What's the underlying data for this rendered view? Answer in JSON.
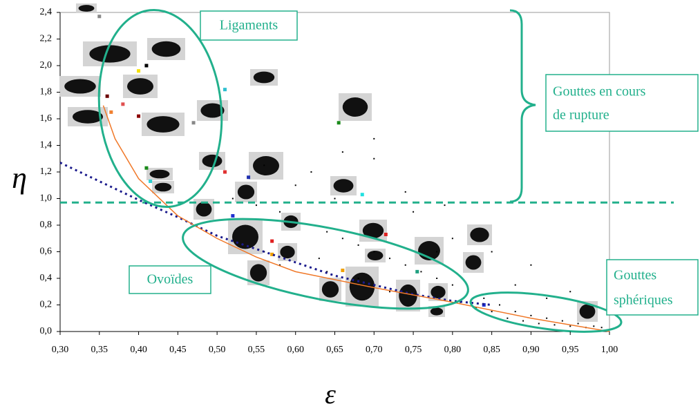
{
  "chart_data": {
    "type": "scatter",
    "x_label": "ε",
    "y_label": "η",
    "xlim": [
      0.3,
      1.0
    ],
    "ylim": [
      0,
      2.4
    ],
    "xticks": [
      {
        "value": 0.3,
        "label": "0,30"
      },
      {
        "value": 0.35,
        "label": "0,35"
      },
      {
        "value": 0.4,
        "label": "0,40"
      },
      {
        "value": 0.45,
        "label": "0,45"
      },
      {
        "value": 0.5,
        "label": "0,50"
      },
      {
        "value": 0.55,
        "label": "0,55"
      },
      {
        "value": 0.6,
        "label": "0,60"
      },
      {
        "value": 0.65,
        "label": "0,65"
      },
      {
        "value": 0.7,
        "label": "0,70"
      },
      {
        "value": 0.75,
        "label": "0,75"
      },
      {
        "value": 0.8,
        "label": "0,80"
      },
      {
        "value": 0.85,
        "label": "0,85"
      },
      {
        "value": 0.9,
        "label": "0,90"
      },
      {
        "value": 0.95,
        "label": "0,95"
      },
      {
        "value": 1.0,
        "label": "1,00"
      }
    ],
    "yticks": [
      {
        "value": 0.0,
        "label": "0,0"
      },
      {
        "value": 0.2,
        "label": "0,2"
      },
      {
        "value": 0.4,
        "label": "0,4"
      },
      {
        "value": 0.6,
        "label": "0,6"
      },
      {
        "value": 0.8,
        "label": "0,8"
      },
      {
        "value": 1.0,
        "label": "1,0"
      },
      {
        "value": 1.2,
        "label": "1,2"
      },
      {
        "value": 1.4,
        "label": "1,4"
      },
      {
        "value": 1.6,
        "label": "1,6"
      },
      {
        "value": 1.8,
        "label": "1,8"
      },
      {
        "value": 2.0,
        "label": "2,0"
      },
      {
        "value": 2.2,
        "label": "2,2"
      },
      {
        "value": 2.4,
        "label": "2,4"
      }
    ],
    "threshold": {
      "value": 0.97,
      "color": "#22b08c"
    },
    "annotations": [
      [
        "Ligaments"
      ],
      [
        "Gouttes en cours",
        "de rupture"
      ],
      [
        "Ovoïdes"
      ],
      [
        "Gouttes",
        "sphériques"
      ]
    ],
    "series": [
      {
        "mode": "markers",
        "color": "#000000",
        "x": [
          0.52,
          0.55,
          0.58,
          0.6,
          0.62,
          0.64,
          0.66,
          0.68,
          0.7,
          0.72,
          0.74,
          0.76,
          0.78,
          0.8,
          0.82,
          0.84,
          0.86,
          0.88,
          0.9,
          0.92,
          0.94,
          0.96,
          0.98,
          0.99,
          0.85,
          0.87,
          0.89,
          0.91,
          0.93,
          0.95,
          0.97,
          0.83,
          0.81,
          0.6,
          0.62,
          0.65,
          0.7,
          0.75,
          0.8,
          0.85,
          0.9,
          0.95,
          0.68,
          0.72,
          0.56,
          0.58,
          0.64,
          0.78,
          0.88,
          0.92,
          0.74,
          0.79,
          0.66,
          0.7,
          0.56,
          0.63
        ],
        "values": [
          1.0,
          0.95,
          0.9,
          0.85,
          0.8,
          0.75,
          0.7,
          0.65,
          0.6,
          0.55,
          0.5,
          0.45,
          0.4,
          0.35,
          0.3,
          0.25,
          0.2,
          0.15,
          0.12,
          0.1,
          0.08,
          0.06,
          0.04,
          0.03,
          0.15,
          0.1,
          0.08,
          0.06,
          0.05,
          0.04,
          0.03,
          0.18,
          0.22,
          1.1,
          1.2,
          1.0,
          1.3,
          0.9,
          0.7,
          0.6,
          0.5,
          0.3,
          0.4,
          0.3,
          0.6,
          0.5,
          0.45,
          0.6,
          0.35,
          0.25,
          1.05,
          0.95,
          1.35,
          1.45,
          1.25,
          0.55
        ]
      },
      {
        "mode": "markers",
        "colors": [
          "#888888",
          "#f5e000",
          "#000000",
          "#6b0000",
          "#e05050",
          "#f08030",
          "#8b0000",
          "#30c0d0",
          "#1a8a1a",
          "#1a8a1a",
          "#30d0d0",
          "#e03030",
          "#2030b0",
          "#20e0e0",
          "#888888",
          "#e02020",
          "#f0a000",
          "#2030d0",
          "#e02020",
          "#f0a000",
          "#2030d0",
          "#20a080"
        ],
        "x": [
          0.35,
          0.4,
          0.41,
          0.36,
          0.38,
          0.365,
          0.4,
          0.51,
          0.655,
          0.41,
          0.415,
          0.51,
          0.54,
          0.685,
          0.47,
          0.57,
          0.57,
          0.52,
          0.715,
          0.66,
          0.84,
          0.755
        ],
        "values": [
          2.37,
          1.96,
          2.0,
          1.77,
          1.71,
          1.65,
          1.62,
          1.82,
          1.57,
          1.23,
          1.13,
          1.2,
          1.16,
          1.03,
          1.57,
          0.68,
          0.58,
          0.87,
          0.73,
          0.46,
          0.2,
          0.45
        ]
      },
      {
        "mode": "line",
        "color": "#1a1a8c",
        "dash": "3 5",
        "x": [
          0.3,
          0.35,
          0.4,
          0.45,
          0.5,
          0.55,
          0.6,
          0.65,
          0.7,
          0.75,
          0.8,
          0.85
        ],
        "values": [
          1.27,
          1.13,
          0.99,
          0.86,
          0.72,
          0.62,
          0.52,
          0.42,
          0.35,
          0.28,
          0.23,
          0.2
        ]
      },
      {
        "mode": "line",
        "color": "#f07828",
        "x": [
          0.355,
          0.37,
          0.4,
          0.45,
          0.5,
          0.55,
          0.6,
          0.7,
          0.8,
          0.9,
          1.0
        ],
        "values": [
          1.7,
          1.45,
          1.15,
          0.87,
          0.7,
          0.56,
          0.45,
          0.33,
          0.22,
          0.1,
          0.0
        ]
      }
    ]
  }
}
